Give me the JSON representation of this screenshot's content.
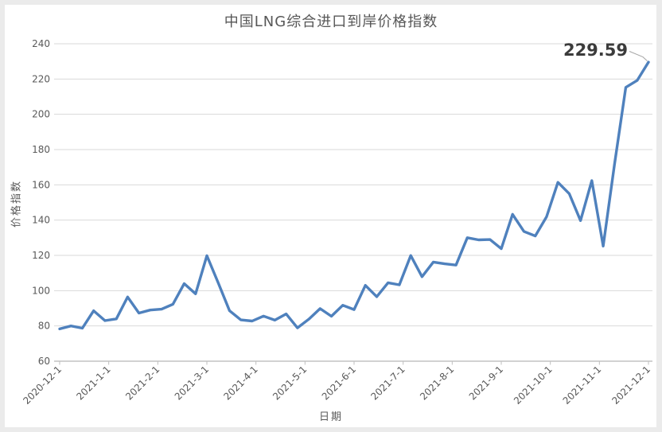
{
  "window": {
    "background": "#ffffff",
    "frame_color": "#ebebeb"
  },
  "chart_data": {
    "type": "line",
    "title": "中国LNG综合进口到岸价格指数",
    "xlabel": "日期",
    "ylabel": "价格指数",
    "ylim": [
      60,
      240
    ],
    "y_tick_step": 20,
    "y_ticks": [
      60,
      80,
      100,
      120,
      140,
      160,
      180,
      200,
      220,
      240
    ],
    "x_ticks": [
      "2020-12-1",
      "2021-1-1",
      "2021-2-1",
      "2021-3-1",
      "2021-4-1",
      "2021-5-1",
      "2021-6-1",
      "2021-7-1",
      "2021-8-1",
      "2021-9-1",
      "2021-10-1",
      "2021-11-1",
      "2021-12-1"
    ],
    "grid": "horizontal",
    "legend": "none",
    "series": [
      {
        "name": "中国LNG综合进口到岸价格指数",
        "color": "#4f81bd",
        "dates": [
          "2020-12-1",
          "2020-12-8",
          "2020-12-15",
          "2020-12-22",
          "2020-12-29",
          "2021-1-5",
          "2021-1-12",
          "2021-1-19",
          "2021-1-26",
          "2021-2-2",
          "2021-2-9",
          "2021-2-16",
          "2021-2-23",
          "2021-3-2",
          "2021-3-9",
          "2021-3-16",
          "2021-3-23",
          "2021-3-30",
          "2021-4-6",
          "2021-4-13",
          "2021-4-20",
          "2021-4-27",
          "2021-5-4",
          "2021-5-11",
          "2021-5-18",
          "2021-5-25",
          "2021-6-1",
          "2021-6-8",
          "2021-6-15",
          "2021-6-22",
          "2021-6-29",
          "2021-7-6",
          "2021-7-13",
          "2021-7-20",
          "2021-7-27",
          "2021-8-3",
          "2021-8-10",
          "2021-8-17",
          "2021-8-24",
          "2021-8-31",
          "2021-9-7",
          "2021-9-14",
          "2021-9-21",
          "2021-9-28",
          "2021-10-5",
          "2021-10-12",
          "2021-10-19",
          "2021-10-26",
          "2021-11-2",
          "2021-11-9",
          "2021-11-16",
          "2021-11-23",
          "2021-11-30"
        ],
        "values": [
          78.3,
          80.0,
          78.7,
          88.6,
          83.0,
          84.0,
          96.4,
          87.3,
          89.0,
          89.5,
          92.3,
          104.0,
          98.2,
          119.8,
          104.5,
          88.6,
          83.4,
          82.8,
          85.6,
          83.3,
          86.8,
          78.9,
          83.8,
          89.8,
          85.5,
          91.7,
          89.3,
          103.0,
          96.6,
          104.5,
          103.3,
          119.9,
          107.9,
          116.2,
          115.2,
          114.5,
          130.0,
          128.8,
          129.0,
          123.8,
          143.3,
          133.6,
          131.0,
          141.9,
          161.4,
          155.0,
          139.7,
          162.4,
          125.3,
          171.6,
          215.3,
          219.2,
          229.59
        ]
      }
    ],
    "annotation": {
      "label": "229.59",
      "value": 229.59,
      "date": "2021-11-30"
    },
    "colors": {
      "line": "#4f81bd",
      "grid": "#d9d9d9",
      "axis": "#a6a6a6",
      "tick": "#bfbfbf",
      "text": "#595959",
      "annotation_text": "#3b3b3b",
      "leader": "#a6a6a6"
    }
  }
}
